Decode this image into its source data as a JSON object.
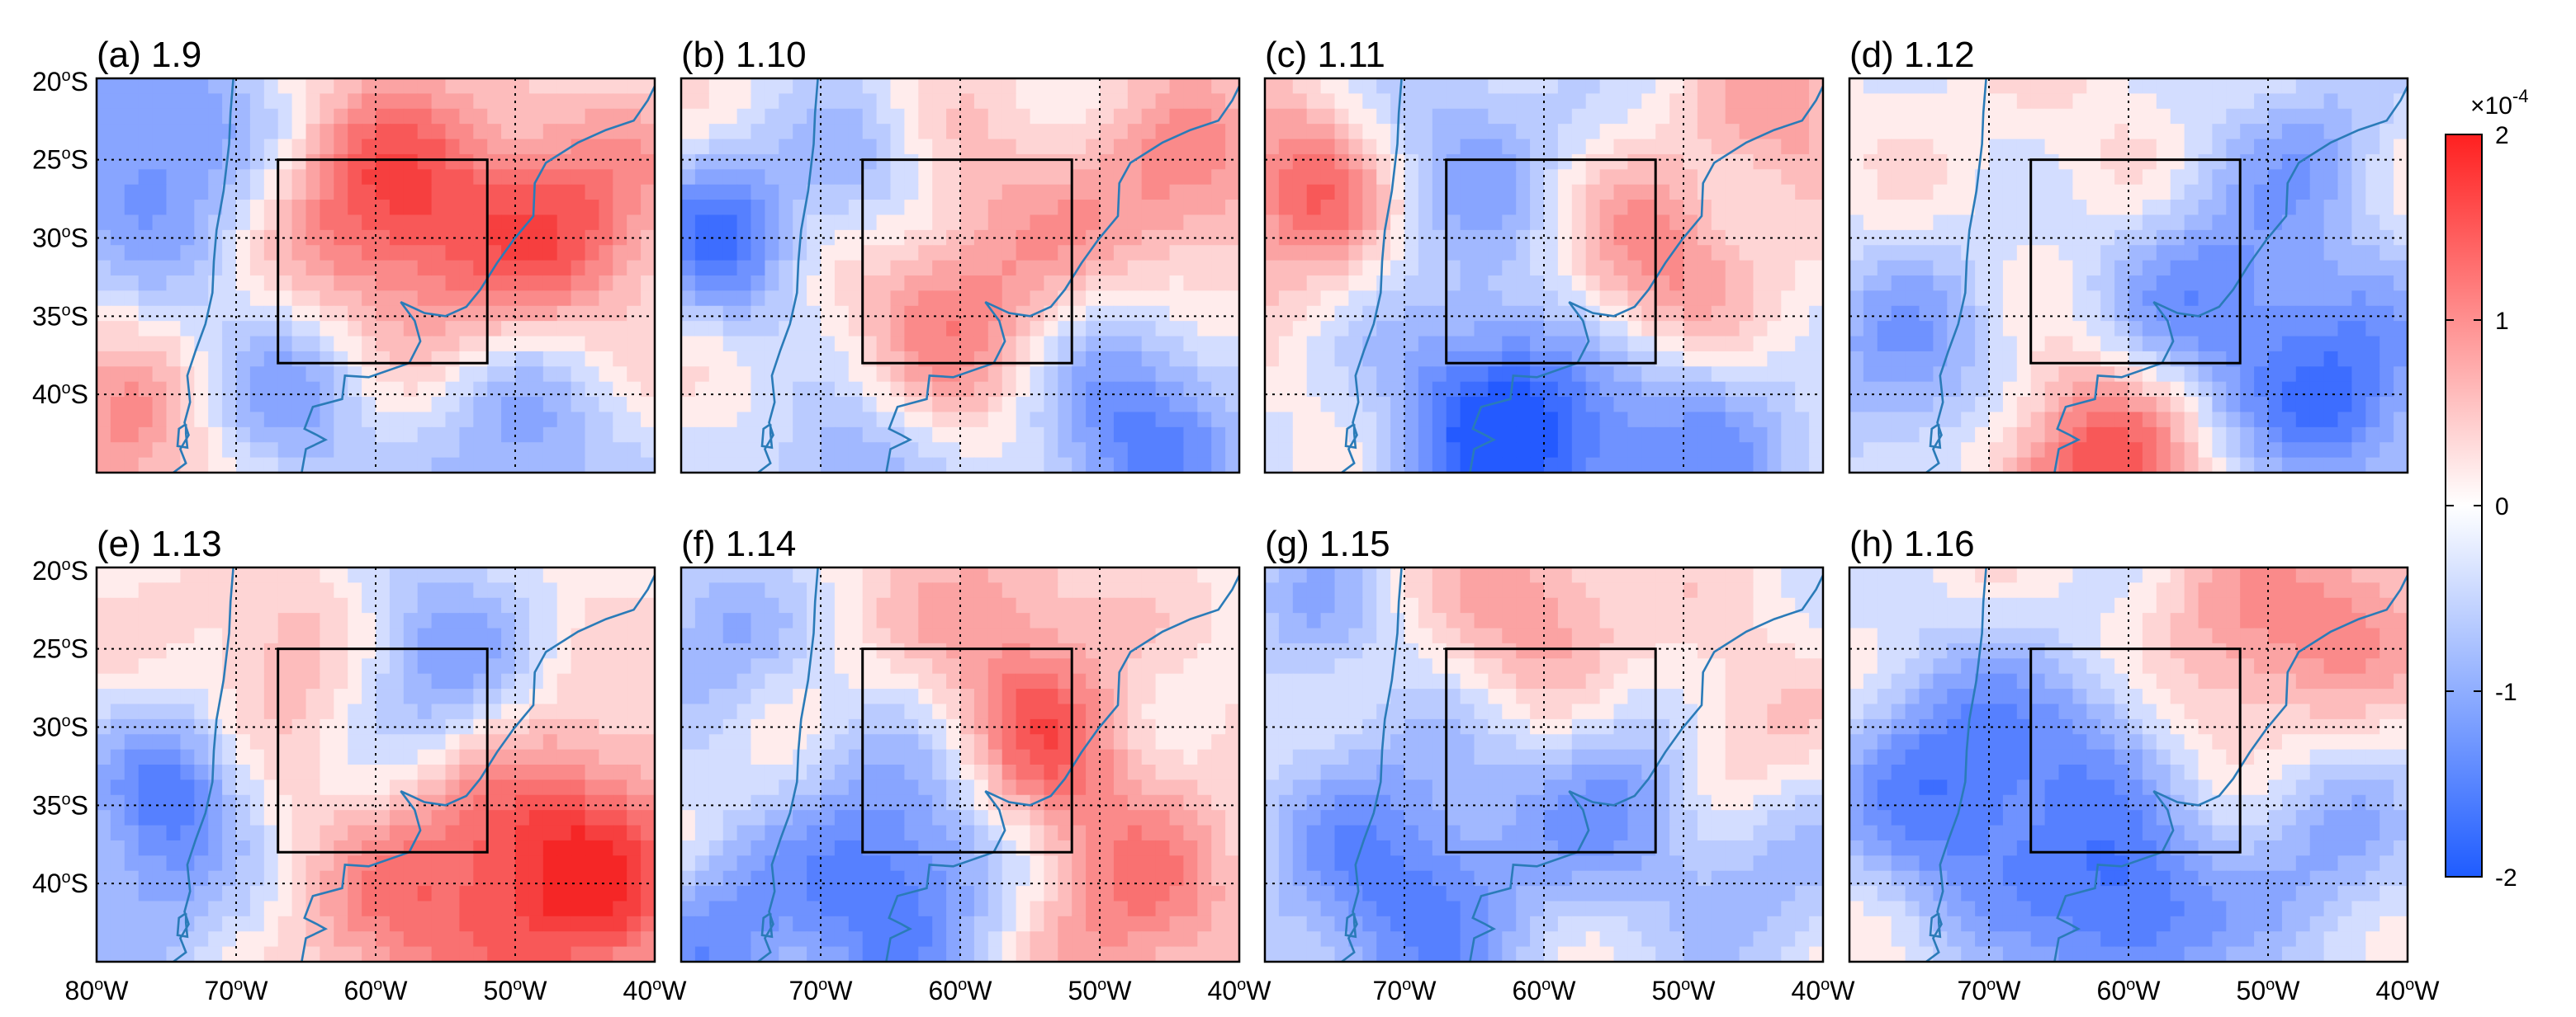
{
  "figure": {
    "panels": [
      {
        "title": "(a) 1.9",
        "pattern": 0
      },
      {
        "title": "(b) 1.10",
        "pattern": 1
      },
      {
        "title": "(c) 1.11",
        "pattern": 2
      },
      {
        "title": "(d) 1.12",
        "pattern": 3
      },
      {
        "title": "(e) 1.13",
        "pattern": 4
      },
      {
        "title": "(f) 1.14",
        "pattern": 5
      },
      {
        "title": "(g) 1.15",
        "pattern": 6
      },
      {
        "title": "(h) 1.16",
        "pattern": 7
      }
    ],
    "lat_ticks": [
      {
        "value": -20,
        "text": "20",
        "sup": "o",
        "suffix": "S"
      },
      {
        "value": -25,
        "text": "25",
        "sup": "o",
        "suffix": "S"
      },
      {
        "value": -30,
        "text": "30",
        "sup": "o",
        "suffix": "S"
      },
      {
        "value": -35,
        "text": "35",
        "sup": "o",
        "suffix": "S"
      },
      {
        "value": -40,
        "text": "40",
        "sup": "o",
        "suffix": "S"
      }
    ],
    "lon_ticks_row0": [
      {
        "value": -80,
        "text": "80",
        "sup": "o",
        "suffix": "W"
      },
      {
        "value": -70,
        "text": "70",
        "sup": "o",
        "suffix": "W"
      },
      {
        "value": -60,
        "text": "60",
        "sup": "o",
        "suffix": "W"
      },
      {
        "value": -50,
        "text": "50",
        "sup": "o",
        "suffix": "W"
      },
      {
        "value": -40,
        "text": "40",
        "sup": "o",
        "suffix": "W"
      }
    ],
    "lon_ticks_other": [
      {
        "value": -70,
        "text": "70",
        "sup": "o",
        "suffix": "W"
      },
      {
        "value": -60,
        "text": "60",
        "sup": "o",
        "suffix": "W"
      },
      {
        "value": -50,
        "text": "50",
        "sup": "o",
        "suffix": "W"
      },
      {
        "value": -40,
        "text": "40",
        "sup": "o",
        "suffix": "W"
      }
    ],
    "extent": {
      "lon": [
        -80,
        -40
      ],
      "lat": [
        -45,
        -19.8
      ]
    },
    "box_region": {
      "lon": [
        -67,
        -52
      ],
      "lat": [
        -38,
        -25
      ]
    },
    "colorbar": {
      "ticks": [
        "2",
        "1",
        "0",
        "-1",
        "-2"
      ],
      "exponent_base": "×10",
      "exponent_power": "-4",
      "colors": {
        "low": "#1f5cff",
        "mid": "#ffffff",
        "high": "#ff2020"
      }
    },
    "colors": {
      "coastline": "#2a7bb8",
      "box": "#000000",
      "grid": "#000000"
    }
  }
}
